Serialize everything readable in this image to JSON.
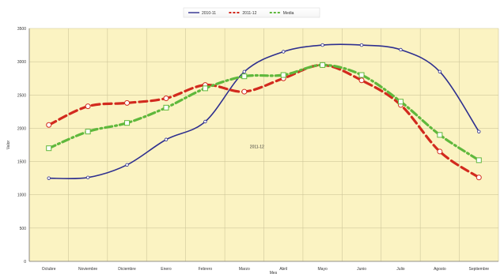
{
  "chart_data": {
    "type": "line",
    "title": "",
    "xlabel": "Mes",
    "ylabel": "Valor",
    "ylim": [
      0,
      3500
    ],
    "yticks": [
      0,
      500,
      1000,
      1500,
      2000,
      2500,
      3000,
      3500
    ],
    "grid": true,
    "legend_placement": "top-center",
    "categories": [
      "Octubre",
      "Noviembre",
      "Diciembre",
      "Enero",
      "Febrero",
      "Marzo",
      "Abril",
      "Mayo",
      "Junio",
      "Julio",
      "Agosto",
      "Septiembre"
    ],
    "series": [
      {
        "name": "2010-11",
        "color": "#2e2f8f",
        "style": "solid",
        "values": [
          1250,
          1260,
          1450,
          1830,
          2100,
          2850,
          3150,
          3250,
          3250,
          3180,
          2850,
          1950
        ]
      },
      {
        "name": "2011-12",
        "color": "#d22a1e",
        "style": "dashed",
        "values": [
          2050,
          2330,
          2380,
          2450,
          2650,
          2550,
          2750,
          2950,
          2720,
          2350,
          1650,
          1260
        ]
      },
      {
        "name": "Media",
        "color": "#5fb83c",
        "style": "dashdot",
        "values": [
          1700,
          1950,
          2080,
          2310,
          2600,
          2780,
          2800,
          2950,
          2800,
          2400,
          1900,
          1520
        ]
      }
    ],
    "annotations": [
      {
        "text": "2011-12",
        "x": "Marzo",
        "y": 1700
      }
    ]
  }
}
